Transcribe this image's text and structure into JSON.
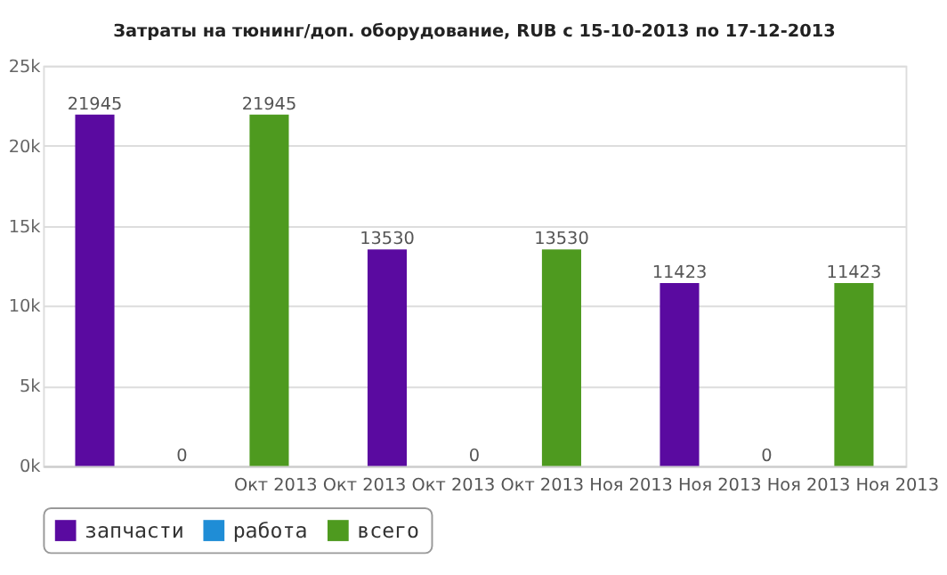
{
  "chart_data": {
    "type": "bar",
    "title": "Затраты на тюнинг/доп. оборудование, RUB с 15-10-2013 по 17-12-2013",
    "categories": [
      null,
      null,
      null
    ],
    "series": [
      {
        "name": "запчасти",
        "color": "#5a0aa0",
        "values": [
          21945,
          13530,
          11423
        ]
      },
      {
        "name": "работа",
        "color": "#1f8dd6",
        "values": [
          0,
          0,
          0
        ]
      },
      {
        "name": "всего",
        "color": "#4e9a1f",
        "values": [
          21945,
          13530,
          11423
        ]
      }
    ],
    "ylim": [
      0,
      25000
    ],
    "yticks": [
      {
        "value": 0,
        "label": "0k"
      },
      {
        "value": 5000,
        "label": "5k"
      },
      {
        "value": 10000,
        "label": "10k"
      },
      {
        "value": 15000,
        "label": "15k"
      },
      {
        "value": 20000,
        "label": "20k"
      },
      {
        "value": 25000,
        "label": "25k"
      }
    ],
    "grid": "y",
    "legend": "bottom",
    "data_labels": true,
    "annotations": [
      "Окт 2013 Окт 2013 Окт 2013 Окт 2013 Ноя 2013 Ноя 2013 Ноя 2013 Ноя 2013"
    ]
  }
}
